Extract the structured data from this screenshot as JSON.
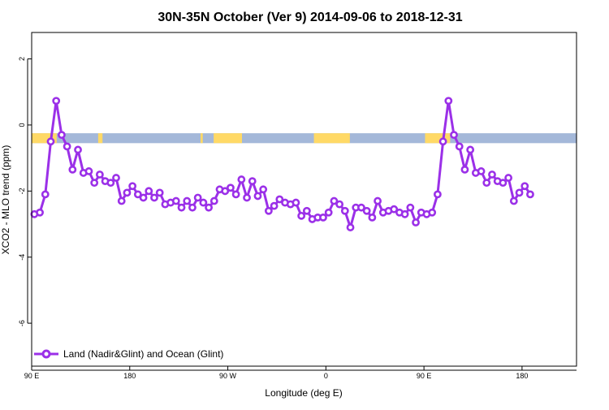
{
  "chart_data": {
    "type": "line",
    "title": "30N-35N October (Ver 9)   2014-09-06 to 2018-12-31",
    "xlabel": "Longitude (deg E)",
    "ylabel": "XCO2 - MLO trend (ppm)",
    "xlim": [
      90,
      590
    ],
    "ylim": [
      -7.3,
      2.8
    ],
    "x_ticks": [
      {
        "value": 90,
        "label": "90 E"
      },
      {
        "value": 180,
        "label": "180"
      },
      {
        "value": 270,
        "label": "90 W"
      },
      {
        "value": 360,
        "label": "0"
      },
      {
        "value": 450,
        "label": "90 E"
      },
      {
        "value": 540,
        "label": "180"
      }
    ],
    "y_ticks": [
      {
        "value": 2,
        "label": "2"
      },
      {
        "value": 0,
        "label": "0"
      },
      {
        "value": -2,
        "label": "-2"
      },
      {
        "value": -4,
        "label": "-4"
      },
      {
        "value": -6,
        "label": "-6"
      }
    ],
    "series": [
      {
        "name": "Land (Nadir&Glint) and Ocean (Glint)",
        "color": "#9b30e8",
        "x": [
          92.5,
          97.5,
          102.5,
          107.5,
          112.5,
          117.5,
          122.5,
          127.5,
          132.5,
          137.5,
          142.5,
          147.5,
          152.5,
          157.5,
          162.5,
          167.5,
          172.5,
          177.5,
          182.5,
          187.5,
          192.5,
          197.5,
          202.5,
          207.5,
          212.5,
          217.5,
          222.5,
          227.5,
          232.5,
          237.5,
          242.5,
          247.5,
          252.5,
          257.5,
          262.5,
          267.5,
          272.5,
          277.5,
          282.5,
          287.5,
          292.5,
          297.5,
          302.5,
          307.5,
          312.5,
          317.5,
          322.5,
          327.5,
          332.5,
          337.5,
          342.5,
          347.5,
          352.5,
          357.5,
          362.5,
          367.5,
          372.5,
          377.5,
          382.5,
          387.5,
          392.5,
          397.5,
          402.5,
          407.5,
          412.5,
          417.5,
          422.5,
          427.5,
          432.5,
          437.5,
          442.5,
          447.5,
          452.5,
          457.5,
          462.5,
          467.5,
          472.5,
          477.5,
          482.5,
          487.5,
          492.5,
          497.5,
          502.5,
          507.5,
          512.5,
          517.5,
          522.5,
          527.5,
          532.5,
          537.5,
          542.5,
          547.5
        ],
        "values": [
          -2.7,
          -2.65,
          -2.1,
          -0.5,
          0.73,
          -0.3,
          -0.65,
          -1.35,
          -0.75,
          -1.45,
          -1.4,
          -1.75,
          -1.5,
          -1.7,
          -1.75,
          -1.6,
          -2.3,
          -2.05,
          -1.85,
          -2.1,
          -2.2,
          -2.0,
          -2.2,
          -2.05,
          -2.4,
          -2.35,
          -2.3,
          -2.5,
          -2.3,
          -2.5,
          -2.2,
          -2.35,
          -2.5,
          -2.3,
          -1.95,
          -2.0,
          -1.9,
          -2.1,
          -1.65,
          -2.2,
          -1.7,
          -2.15,
          -1.95,
          -2.6,
          -2.45,
          -2.25,
          -2.35,
          -2.4,
          -2.35,
          -2.75,
          -2.6,
          -2.85,
          -2.8,
          -2.8,
          -2.65,
          -2.3,
          -2.4,
          -2.6,
          -3.1,
          -2.5,
          -2.5,
          -2.6,
          -2.8,
          -2.3,
          -2.65,
          -2.6,
          -2.55,
          -2.65,
          -2.7,
          -2.5,
          -2.95,
          -2.65,
          -2.7,
          -2.65,
          -2.1,
          -0.5,
          0.73,
          -0.3,
          -0.65,
          -1.35,
          -0.75,
          -1.45,
          -1.4,
          -1.75,
          -1.5,
          -1.7,
          -1.75,
          -1.6,
          -2.3,
          -2.05,
          -1.85,
          -2.1
        ]
      }
    ],
    "surface_band": {
      "y_range": [
        -0.55,
        -0.25
      ],
      "land_color": "#ffd966",
      "ocean_color": "#a4b8d9",
      "land_segments": [
        [
          90,
          113
        ],
        [
          151,
          155
        ],
        [
          245,
          247
        ],
        [
          257,
          283
        ],
        [
          349,
          382
        ],
        [
          451,
          474
        ]
      ]
    },
    "legend": {
      "placement": "bottom-left"
    },
    "grid": false
  }
}
